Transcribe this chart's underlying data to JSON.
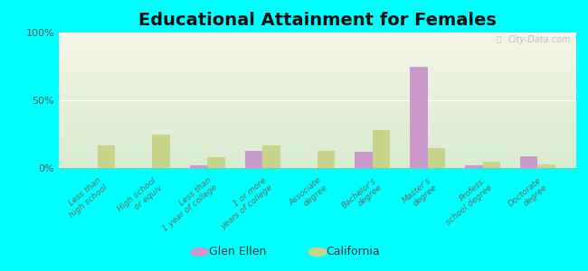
{
  "title": "Educational Attainment for Females",
  "categories": [
    "Less than\nhigh school",
    "High school\nor equiv",
    "Less than\n1 year of college",
    "1 or more\nyears of college",
    "Associate\ndegree",
    "Bachelor's\ndegree",
    "Master's\ndegree",
    "Profess.\nschool degree",
    "Doctorate\ndegree"
  ],
  "glen_ellen": [
    0.0,
    0.0,
    2.0,
    13.0,
    0.0,
    12.0,
    75.0,
    2.0,
    9.0
  ],
  "california": [
    17.0,
    25.0,
    8.0,
    17.0,
    13.0,
    28.0,
    15.0,
    5.0,
    3.0
  ],
  "glen_ellen_color": "#cc99cc",
  "california_color": "#c8d48a",
  "bg_top": "#f5f5e8",
  "bg_bottom": "#d8ecd0",
  "figure_bg": "#00ffff",
  "ylim": [
    0,
    100
  ],
  "yticks": [
    0,
    50,
    100
  ],
  "ytick_labels": [
    "0%",
    "50%",
    "100%"
  ],
  "bar_width": 0.32,
  "title_fontsize": 14,
  "tick_fontsize": 6.5,
  "legend_labels": [
    "Glen Ellen",
    "California"
  ],
  "watermark": "City-Data.com"
}
